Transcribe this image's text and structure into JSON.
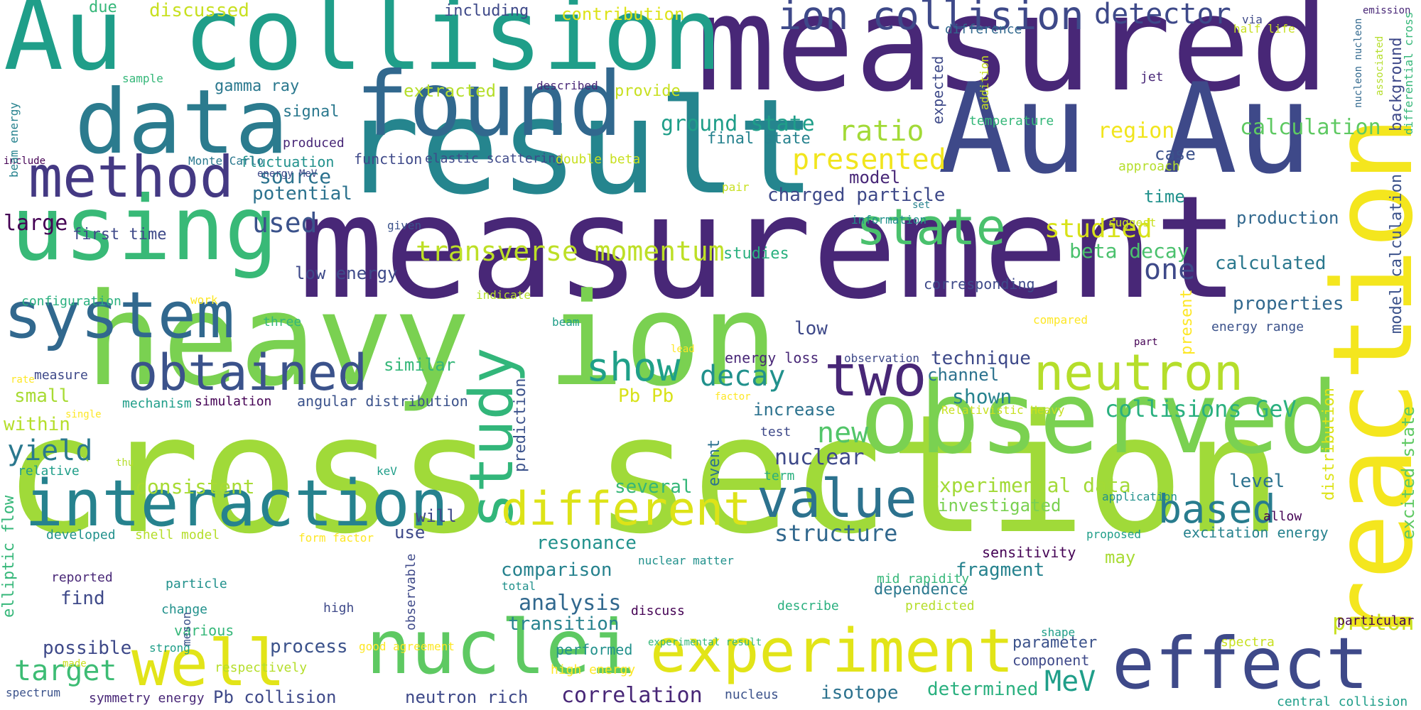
{
  "palette": {
    "dark_purple": "#482777",
    "indigo": "#3e4989",
    "blue": "#31688e",
    "teal": "#26828e",
    "green_teal": "#1f9e89",
    "green": "#35b779",
    "light_green": "#6ece58",
    "lime": "#b5de2b",
    "yellow": "#fde725",
    "deep_purple": "#440154"
  },
  "words": [
    {
      "text": "cross section",
      "size": 1.0
    },
    {
      "text": "measurement",
      "size": 0.9
    },
    {
      "text": "measured",
      "size": 0.82
    },
    {
      "text": "heavy ion",
      "size": 0.8
    },
    {
      "text": "result",
      "size": 0.72
    },
    {
      "text": "Au Au",
      "size": 0.7
    },
    {
      "text": "Au collision",
      "size": 0.64
    },
    {
      "text": "observed",
      "size": 0.6
    },
    {
      "text": "reaction",
      "size": 0.58
    },
    {
      "text": "data",
      "size": 0.55
    },
    {
      "text": "found",
      "size": 0.5
    },
    {
      "text": "using",
      "size": 0.5
    },
    {
      "text": "nuclei",
      "size": 0.45
    },
    {
      "text": "effect",
      "size": 0.45
    },
    {
      "text": "interaction",
      "size": 0.42
    },
    {
      "text": "system",
      "size": 0.4
    },
    {
      "text": "experiment",
      "size": 0.4
    },
    {
      "text": "study",
      "size": 0.38
    },
    {
      "text": "well",
      "size": 0.38
    },
    {
      "text": "method",
      "size": 0.36
    },
    {
      "text": "two",
      "size": 0.35
    },
    {
      "text": "obtained",
      "size": 0.33
    },
    {
      "text": "value",
      "size": 0.33
    },
    {
      "text": "neutron",
      "size": 0.33
    },
    {
      "text": "different",
      "size": 0.33
    },
    {
      "text": "state",
      "size": 0.3
    },
    {
      "text": "ion collision",
      "size": 0.28
    },
    {
      "text": "show",
      "size": 0.27
    },
    {
      "text": "based",
      "size": 0.27
    },
    {
      "text": "presented",
      "size": 0.22
    },
    {
      "text": "transverse momentum",
      "size": 0.22
    },
    {
      "text": "detector",
      "size": 0.22
    },
    {
      "text": "yield",
      "size": 0.22
    },
    {
      "text": "new",
      "size": 0.21
    },
    {
      "text": "target",
      "size": 0.21
    },
    {
      "text": "decay",
      "size": 0.21
    },
    {
      "text": "MeV",
      "size": 0.21
    },
    {
      "text": "used",
      "size": 0.2
    },
    {
      "text": "studied",
      "size": 0.2
    },
    {
      "text": "ratio",
      "size": 0.2
    },
    {
      "text": "one",
      "size": 0.2
    },
    {
      "text": "structure",
      "size": 0.18
    },
    {
      "text": "collisions GeV",
      "size": 0.18
    },
    {
      "text": "correlation",
      "size": 0.17
    },
    {
      "text": "nuclear",
      "size": 0.17
    },
    {
      "text": "proton",
      "size": 0.17
    },
    {
      "text": "calculation",
      "size": 0.17
    },
    {
      "text": "large",
      "size": 0.17
    },
    {
      "text": "ground state",
      "size": 0.16
    },
    {
      "text": "experimental data",
      "size": 0.16
    },
    {
      "text": "beta decay",
      "size": 0.16
    },
    {
      "text": "analysis",
      "size": 0.16
    },
    {
      "text": "source",
      "size": 0.16
    },
    {
      "text": "shown",
      "size": 0.16
    },
    {
      "text": "region",
      "size": 0.15
    },
    {
      "text": "potential",
      "size": 0.15
    },
    {
      "text": "charged particle",
      "size": 0.15
    },
    {
      "text": "production",
      "size": 0.15
    },
    {
      "text": "calculated",
      "size": 0.15
    },
    {
      "text": "properties",
      "size": 0.15
    },
    {
      "text": "several",
      "size": 0.15
    },
    {
      "text": "comparison",
      "size": 0.15
    },
    {
      "text": "transition",
      "size": 0.15
    },
    {
      "text": "resonance",
      "size": 0.15
    },
    {
      "text": "consistent",
      "size": 0.15
    },
    {
      "text": "Pb Pb",
      "size": 0.15
    },
    {
      "text": "level",
      "size": 0.15
    },
    {
      "text": "fragment",
      "size": 0.15
    },
    {
      "text": "dependence",
      "size": 0.14
    },
    {
      "text": "parameter",
      "size": 0.14
    },
    {
      "text": "isotope",
      "size": 0.14
    },
    {
      "text": "determined",
      "size": 0.14
    },
    {
      "text": "neutron rich",
      "size": 0.14
    },
    {
      "text": "Pb collision",
      "size": 0.14
    },
    {
      "text": "process",
      "size": 0.14
    },
    {
      "text": "possible",
      "size": 0.14
    },
    {
      "text": "find",
      "size": 0.14
    },
    {
      "text": "within",
      "size": 0.14
    },
    {
      "text": "small",
      "size": 0.14
    },
    {
      "text": "similar",
      "size": 0.14
    },
    {
      "text": "technique",
      "size": 0.14
    },
    {
      "text": "channel",
      "size": 0.14
    },
    {
      "text": "increase",
      "size": 0.14
    },
    {
      "text": "low",
      "size": 0.14
    },
    {
      "text": "low energy",
      "size": 0.13
    },
    {
      "text": "model",
      "size": 0.13
    },
    {
      "text": "time",
      "size": 0.13
    },
    {
      "text": "case",
      "size": 0.13
    },
    {
      "text": "may",
      "size": 0.13
    },
    {
      "text": "use",
      "size": 0.13
    },
    {
      "text": "will",
      "size": 0.13
    },
    {
      "text": "investigated",
      "size": 0.13
    },
    {
      "text": "first time",
      "size": 0.12
    },
    {
      "text": "extracted",
      "size": 0.13
    },
    {
      "text": "contribution",
      "size": 0.13
    },
    {
      "text": "discussed",
      "size": 0.13
    },
    {
      "text": "including",
      "size": 0.12
    },
    {
      "text": "gamma ray",
      "size": 0.12
    },
    {
      "text": "signal",
      "size": 0.12
    },
    {
      "text": "provide",
      "size": 0.12
    },
    {
      "text": "final state",
      "size": 0.12
    },
    {
      "text": "studies",
      "size": 0.12
    },
    {
      "text": "energy loss",
      "size": 0.1
    },
    {
      "text": "angular distribution",
      "size": 0.1
    },
    {
      "text": "excitation energy",
      "size": 0.1
    },
    {
      "text": "energy range",
      "size": 0.09
    },
    {
      "text": "sensitivity",
      "size": 0.1
    },
    {
      "text": "component",
      "size": 0.1
    },
    {
      "text": "performed",
      "size": 0.1
    },
    {
      "text": "high energy",
      "size": 0.09
    },
    {
      "text": "corresponding",
      "size": 0.1
    },
    {
      "text": "fluctuation",
      "size": 0.1
    },
    {
      "text": "function",
      "size": 0.1
    },
    {
      "text": "elastic scattering",
      "size": 0.09
    },
    {
      "text": "double beta",
      "size": 0.09
    },
    {
      "text": "Monte Carlo",
      "size": 0.08
    },
    {
      "text": "produced",
      "size": 0.09
    },
    {
      "text": "temperature",
      "size": 0.09
    },
    {
      "text": "difference",
      "size": 0.09
    },
    {
      "text": "configuration",
      "size": 0.09
    },
    {
      "text": "measure",
      "size": 0.09
    },
    {
      "text": "three",
      "size": 0.09
    },
    {
      "text": "mechanism",
      "size": 0.09
    },
    {
      "text": "simulation",
      "size": 0.09
    },
    {
      "text": "developed",
      "size": 0.09
    },
    {
      "text": "shell model",
      "size": 0.09
    },
    {
      "text": "form factor",
      "size": 0.08
    },
    {
      "text": "nuclear matter",
      "size": 0.08
    },
    {
      "text": "reported",
      "size": 0.09
    },
    {
      "text": "particle",
      "size": 0.09
    },
    {
      "text": "change",
      "size": 0.09
    },
    {
      "text": "various",
      "size": 0.1
    },
    {
      "text": "high",
      "size": 0.09
    },
    {
      "text": "discuss",
      "size": 0.09
    },
    {
      "text": "total",
      "size": 0.08
    },
    {
      "text": "describe",
      "size": 0.09
    },
    {
      "text": "predicted",
      "size": 0.09
    },
    {
      "text": "shape",
      "size": 0.08
    },
    {
      "text": "mid rapidity",
      "size": 0.09
    },
    {
      "text": "spectra",
      "size": 0.09
    },
    {
      "text": "particular",
      "size": 0.09
    },
    {
      "text": "central collision",
      "size": 0.09
    },
    {
      "text": "relative",
      "size": 0.09
    },
    {
      "text": "keV",
      "size": 0.08
    },
    {
      "text": "strong",
      "size": 0.08
    },
    {
      "text": "made",
      "size": 0.07
    },
    {
      "text": "respectively",
      "size": 0.09
    },
    {
      "text": "good agreement",
      "size": 0.08
    },
    {
      "text": "experimental result",
      "size": 0.07
    },
    {
      "text": "nucleus",
      "size": 0.09
    },
    {
      "text": "spectrum",
      "size": 0.08
    },
    {
      "text": "symmetry energy",
      "size": 0.09
    },
    {
      "text": "test",
      "size": 0.09
    },
    {
      "text": "term",
      "size": 0.09
    },
    {
      "text": "application",
      "size": 0.08
    },
    {
      "text": "allow",
      "size": 0.09
    },
    {
      "text": "proposed",
      "size": 0.08
    },
    {
      "text": "observation",
      "size": 0.08
    },
    {
      "text": "Relativistic Heavy",
      "size": 0.08
    },
    {
      "text": "factor",
      "size": 0.07
    },
    {
      "text": "lead",
      "size": 0.07
    },
    {
      "text": "compared",
      "size": 0.08
    },
    {
      "text": "part",
      "size": 0.07
    },
    {
      "text": "indicate",
      "size": 0.08
    },
    {
      "text": "beam",
      "size": 0.08
    },
    {
      "text": "work",
      "size": 0.08
    },
    {
      "text": "rate",
      "size": 0.07
    },
    {
      "text": "single",
      "size": 0.07
    },
    {
      "text": "thu",
      "size": 0.07
    },
    {
      "text": "sample",
      "size": 0.08
    },
    {
      "text": "due",
      "size": 0.1
    },
    {
      "text": "include",
      "size": 0.07
    },
    {
      "text": "energy MeV",
      "size": 0.07
    },
    {
      "text": "given",
      "size": 0.08
    },
    {
      "text": "information",
      "size": 0.08
    },
    {
      "text": "suggest",
      "size": 0.08
    },
    {
      "text": "set",
      "size": 0.07
    },
    {
      "text": "pair",
      "size": 0.08
    },
    {
      "text": "approach",
      "size": 0.08
    },
    {
      "text": "described",
      "size": 0.08
    },
    {
      "text": "jet",
      "size": 0.09
    },
    {
      "text": "via",
      "size": 0.08
    },
    {
      "text": "half life",
      "size": 0.08
    },
    {
      "text": "emission",
      "size": 0.07
    },
    {
      "text": "addition",
      "size": 0.08
    },
    {
      "text": "expected",
      "size": 0.09
    },
    {
      "text": "nucleon nucleon",
      "size": 0.07
    },
    {
      "text": "associated",
      "size": 0.07
    },
    {
      "text": "background",
      "size": 0.1
    },
    {
      "text": "differential cross",
      "size": 0.08
    },
    {
      "text": "model calculation",
      "size": 0.1
    },
    {
      "text": "excited state",
      "size": 0.1
    },
    {
      "text": "distribution",
      "size": 0.1
    },
    {
      "text": "present",
      "size": 0.09
    },
    {
      "text": "prediction",
      "size": 0.1
    },
    {
      "text": "event",
      "size": 0.1
    },
    {
      "text": "observable",
      "size": 0.09
    },
    {
      "text": "meson",
      "size": 0.08
    },
    {
      "text": "elliptic flow",
      "size": 0.1
    },
    {
      "text": "beam energy",
      "size": 0.08
    }
  ]
}
